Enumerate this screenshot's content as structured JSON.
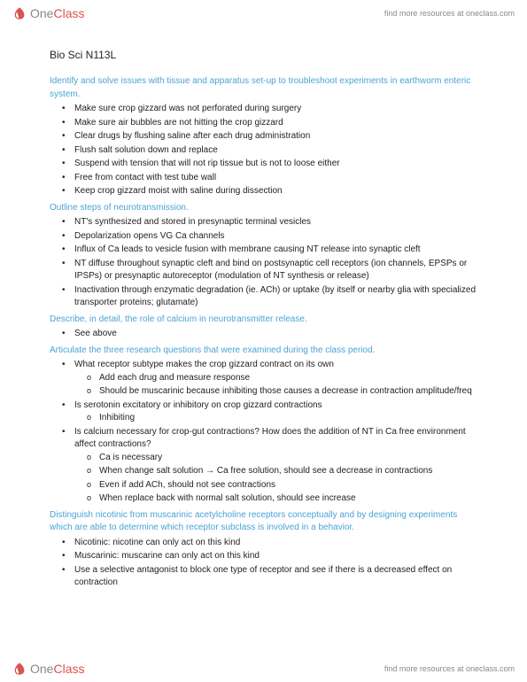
{
  "brand": {
    "part1": "One",
    "part2": "Class",
    "tagline": "find more resources at oneclass.com"
  },
  "doc": {
    "title": "Bio Sci N113L",
    "sections": [
      {
        "heading": "Identify and solve issues with tissue and apparatus set-up to troubleshoot experiments in earthworm enteric system.",
        "items": [
          {
            "t": "Make sure crop gizzard was not perforated during surgery"
          },
          {
            "t": "Make sure air bubbles are not hitting the crop gizzard"
          },
          {
            "t": "Clear drugs by flushing saline after each drug administration"
          },
          {
            "t": "Flush salt solution down and replace"
          },
          {
            "t": "Suspend with tension that will not rip tissue but is not to loose either"
          },
          {
            "t": "Free from contact with test tube wall"
          },
          {
            "t": "Keep crop gizzard moist with saline during dissection"
          }
        ]
      },
      {
        "heading": "Outline steps of neurotransmission.",
        "items": [
          {
            "t": "NT's synthesized and stored in presynaptic terminal vesicles"
          },
          {
            "t": "Depolarization opens VG Ca channels"
          },
          {
            "t": "Influx of Ca leads to vesicle fusion with membrane causing NT release into synaptic cleft"
          },
          {
            "t": "NT diffuse throughout synaptic cleft and bind on postsynaptic cell receptors (ion channels, EPSPs or IPSPs) or presynaptic autoreceptor (modulation of NT synthesis or release)"
          },
          {
            "t": "Inactivation through enzymatic degradation (ie. ACh) or uptake (by itself or nearby glia with specialized transporter proteins; glutamate)"
          }
        ]
      },
      {
        "heading": "Describe, in detail, the role of calcium in neurotransmitter release.",
        "items": [
          {
            "t": "See above"
          }
        ]
      },
      {
        "heading": "Articulate the three research questions that were examined during the class period.",
        "items": [
          {
            "t": "What receptor subtype makes the crop gizzard contract on its own",
            "sub": [
              "Add each drug and measure response",
              "Should be muscarinic because inhibiting those causes a decrease in contraction amplitude/freq"
            ]
          },
          {
            "t": "Is serotonin excitatory or inhibitory on crop gizzard contractions",
            "sub": [
              "Inhibiting"
            ]
          },
          {
            "t": "Is calcium necessary for crop-gut contractions? How does the addition of NT in Ca free environment affect contractions?",
            "sub": [
              "Ca is necessary",
              "When change salt solution → Ca free solution, should see a decrease in contractions",
              "Even if add ACh, should not see contractions",
              "When replace back with normal salt solution, should see increase"
            ]
          }
        ]
      },
      {
        "heading": "Distinguish nicotinic from muscarinic acetylcholine receptors conceptually and by designing experiments which are able to determine which receptor subclass is involved in a behavior.",
        "items": [
          {
            "t": "Nicotinic: nicotine can only act on this kind"
          },
          {
            "t": "Muscarinic: muscarine can only act on this kind"
          },
          {
            "t": "Use a selective antagonist to block one type of receptor and see if there is a decreased effect on contraction"
          }
        ]
      }
    ]
  },
  "colors": {
    "heading": "#4aa3d8",
    "body": "#222222",
    "link": "#888888",
    "brand_red": "#d9534f"
  }
}
